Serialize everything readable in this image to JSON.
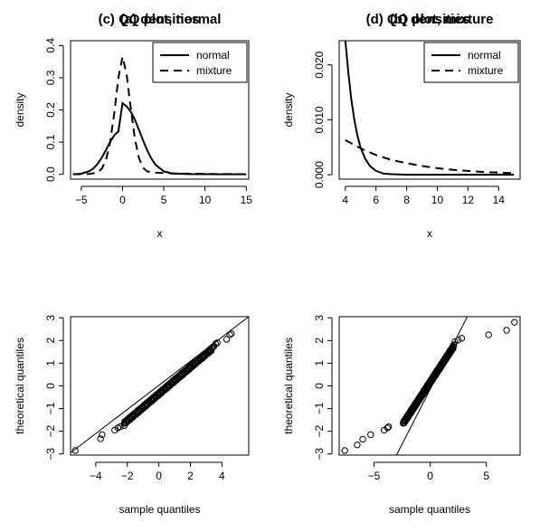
{
  "chart_data": [
    {
      "panel": "a",
      "type": "line",
      "title": "(a) densities",
      "xlabel": "x",
      "ylabel": "density",
      "xlim": [
        -6.3,
        15.3
      ],
      "ylim": [
        -0.015,
        0.415
      ],
      "xticks": [
        -5,
        0,
        5,
        10,
        15
      ],
      "xtick_labels": [
        "−5",
        "0",
        "5",
        "10",
        "15"
      ],
      "yticks": [
        0.0,
        0.1,
        0.2,
        0.3,
        0.4
      ],
      "ytick_labels": [
        "0.0",
        "0.1",
        "0.2",
        "0.3",
        "0.4"
      ],
      "legend_position": "top-right",
      "legend": [
        {
          "label": "normal",
          "style": "solid"
        },
        {
          "label": "mixture",
          "style": "dashed"
        }
      ],
      "series": [
        {
          "name": "normal",
          "style": "solid",
          "x": [
            -6,
            -5,
            -4,
            -3.5,
            -3,
            -2.5,
            -2,
            -1.5,
            -1,
            -0.5,
            0,
            0.5,
            1,
            1.5,
            2,
            2.5,
            3,
            3.5,
            4,
            5,
            6,
            8,
            10,
            12,
            15
          ],
          "y": [
            0.0,
            0.0019,
            0.0101,
            0.019,
            0.0331,
            0.0526,
            0.0762,
            0.1006,
            0.1212,
            0.1333,
            0.2212,
            0.2109,
            0.1943,
            0.1697,
            0.1379,
            0.1049,
            0.0742,
            0.0488,
            0.0298,
            0.0093,
            0.0026,
            0.0008,
            0.0004,
            0.0002,
            0.0001
          ]
        },
        {
          "name": "mixture",
          "style": "dashed",
          "x": [
            -6,
            -4,
            -3,
            -2.5,
            -2,
            -1.5,
            -1,
            -0.5,
            0,
            0.5,
            1,
            1.5,
            2,
            2.5,
            3,
            4,
            5,
            6,
            8,
            10,
            12,
            15
          ],
          "y": [
            0.0,
            0.001,
            0.006,
            0.018,
            0.045,
            0.1,
            0.19,
            0.3,
            0.365,
            0.31,
            0.205,
            0.11,
            0.05,
            0.02,
            0.009,
            0.005,
            0.004,
            0.003,
            0.002,
            0.0013,
            0.0008,
            0.0004
          ]
        }
      ]
    },
    {
      "panel": "b",
      "type": "line",
      "title": "(b) densities",
      "xlabel": "x",
      "ylabel": "density",
      "xlim": [
        3.6,
        15.4
      ],
      "ylim": [
        -0.0008,
        0.0244
      ],
      "xticks": [
        4,
        6,
        8,
        10,
        12,
        14
      ],
      "xtick_labels": [
        "4",
        "6",
        "8",
        "10",
        "12",
        "14"
      ],
      "yticks": [
        0.0,
        0.01,
        0.02
      ],
      "ytick_labels": [
        "0.000",
        "0.010",
        "0.020"
      ],
      "legend_position": "top-right",
      "legend": [
        {
          "label": "normal",
          "style": "solid"
        },
        {
          "label": "mixture",
          "style": "dashed"
        }
      ],
      "series": [
        {
          "name": "normal",
          "style": "solid",
          "x": [
            4.0,
            4.2,
            4.4,
            4.6,
            4.8,
            5.0,
            5.3,
            5.6,
            6.0,
            6.5,
            7.0,
            8.0,
            9.0,
            10.0,
            12.0,
            15.0
          ],
          "y": [
            0.0245,
            0.0185,
            0.0135,
            0.0098,
            0.007,
            0.0049,
            0.0029,
            0.0016,
            0.0007,
            0.0002,
            0.0001,
            0.0,
            0.0,
            0.0,
            0.0,
            0.0
          ]
        },
        {
          "name": "mixture",
          "style": "dashed",
          "x": [
            4,
            5,
            6,
            7,
            8,
            9,
            10,
            11,
            12,
            13,
            14,
            15
          ],
          "y": [
            0.0063,
            0.0048,
            0.0036,
            0.0027,
            0.0021,
            0.0016,
            0.0012,
            0.0009,
            0.0007,
            0.0005,
            0.0004,
            0.0003
          ]
        }
      ]
    },
    {
      "panel": "c",
      "type": "scatter",
      "title": "(c) QQ plot, normal",
      "xlabel": "sample quantiles",
      "ylabel": "theoretical quantiles",
      "xlim": [
        -5.6,
        5.7
      ],
      "ylim": [
        -3.05,
        3.05
      ],
      "xticks": [
        -4,
        -2,
        0,
        2,
        4
      ],
      "xtick_labels": [
        "−4",
        "−2",
        "0",
        "2",
        "4"
      ],
      "yticks": [
        -3,
        -2,
        -1,
        0,
        1,
        2,
        3
      ],
      "ytick_labels": [
        "−3",
        "−2",
        "−1",
        "0",
        "1",
        "2",
        "3"
      ],
      "reference_line": {
        "x": [
          -5.6,
          5.7
        ],
        "y": [
          -2.95,
          3.05
        ]
      },
      "points": {
        "x": [
          -5.3,
          -3.7,
          -3.6,
          -2.8,
          -2.6,
          -2.45,
          -2.2,
          4.6,
          4.5,
          4.3,
          3.7,
          3.6,
          3.5
        ],
        "y": [
          -2.85,
          -2.33,
          -2.15,
          -1.95,
          -1.85,
          -1.8,
          -1.75,
          2.3,
          2.25,
          2.05,
          1.9,
          1.85,
          1.75
        ]
      },
      "point_runs": [
        {
          "x_from": -2.2,
          "x_to": 3.4,
          "y_from": -1.65,
          "y_to": 1.65
        }
      ]
    },
    {
      "panel": "d",
      "type": "scatter",
      "title": "(d) QQ plot, mixture",
      "xlabel": "sample quantiles",
      "ylabel": "theoretical quantiles",
      "xlim": [
        -8.1,
        8.0
      ],
      "ylim": [
        -3.05,
        3.05
      ],
      "xticks": [
        -5,
        0,
        5
      ],
      "xtick_labels": [
        "−5",
        "0",
        "5"
      ],
      "yticks": [
        -3,
        -2,
        -1,
        0,
        1,
        2,
        3
      ],
      "ytick_labels": [
        "−3",
        "−2",
        "−1",
        "0",
        "1",
        "2",
        "3"
      ],
      "reference_line": {
        "x": [
          -3.0,
          3.3
        ],
        "y": [
          -3.05,
          3.05
        ]
      },
      "points": {
        "x": [
          -7.6,
          -6.5,
          -6.0,
          -5.3,
          -4.1,
          -3.8,
          -3.7,
          7.5,
          6.8,
          5.2,
          2.8,
          2.5,
          2.2
        ],
        "y": [
          -2.85,
          -2.6,
          -2.35,
          -2.15,
          -1.95,
          -1.85,
          -1.8,
          2.8,
          2.45,
          2.25,
          2.1,
          2.02,
          1.95
        ]
      },
      "point_runs": [
        {
          "x_from": -2.4,
          "x_to": 2.1,
          "y_from": -1.65,
          "y_to": 1.75
        }
      ]
    }
  ]
}
